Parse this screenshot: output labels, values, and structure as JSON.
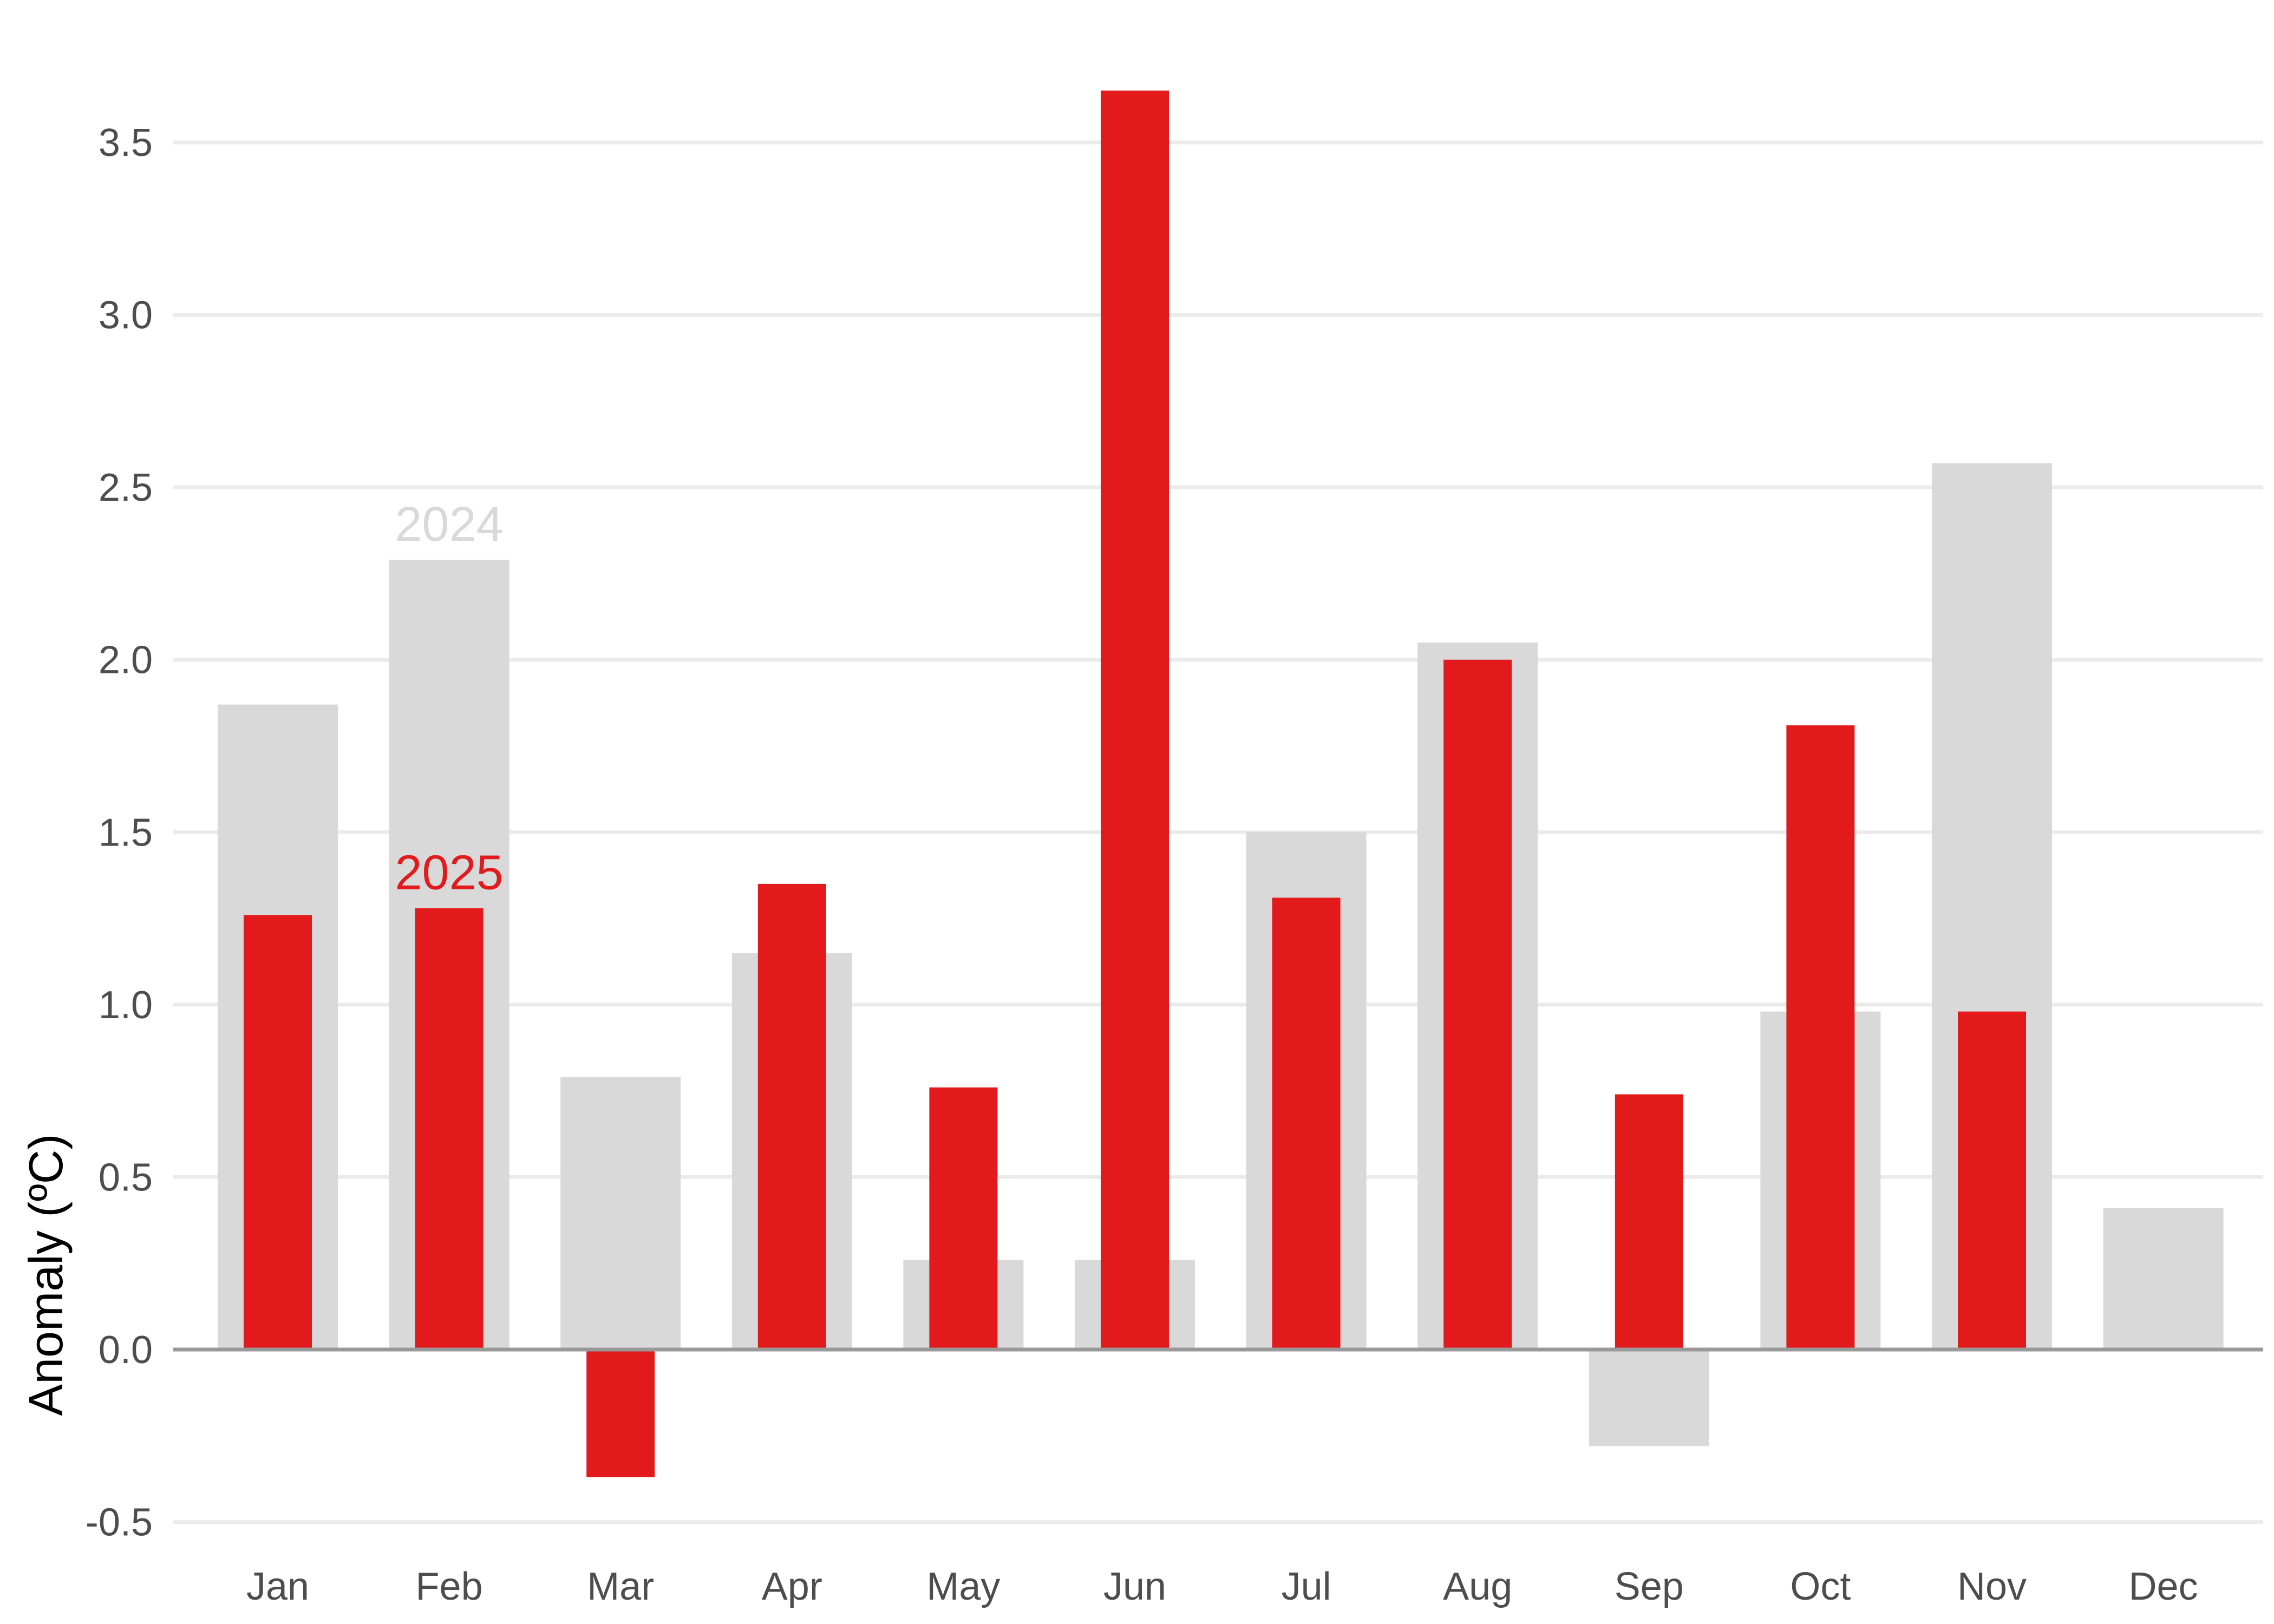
{
  "chart_data": {
    "type": "bar",
    "title": "",
    "xlabel": "",
    "ylabel": "Anomaly (ºC)",
    "categories": [
      "Jan",
      "Feb",
      "Mar",
      "Apr",
      "May",
      "Jun",
      "Jul",
      "Aug",
      "Sep",
      "Oct",
      "Nov",
      "Dec"
    ],
    "series": [
      {
        "name": "2024",
        "color": "#d9d9d9",
        "values": [
          1.87,
          2.29,
          0.79,
          1.15,
          0.26,
          0.26,
          1.5,
          2.05,
          -0.28,
          0.98,
          2.57,
          0.41
        ]
      },
      {
        "name": "2025",
        "color": "#e31a1c",
        "values": [
          1.26,
          1.28,
          -0.37,
          1.35,
          0.76,
          3.65,
          1.31,
          2.0,
          0.74,
          1.81,
          0.98,
          null
        ]
      }
    ],
    "yticks": [
      -0.5,
      0.0,
      0.5,
      1.0,
      1.5,
      2.0,
      2.5,
      3.0,
      3.5
    ],
    "ytick_labels": [
      "-0.5",
      "0.0",
      "0.5",
      "1.0",
      "1.5",
      "2.0",
      "2.5",
      "3.0",
      "3.5"
    ],
    "ylim": [
      -0.55,
      3.85
    ],
    "grid": true,
    "legend": "inline labels above Feb bars",
    "zero_line_color": "#999999",
    "grid_color": "#ebebeb"
  }
}
